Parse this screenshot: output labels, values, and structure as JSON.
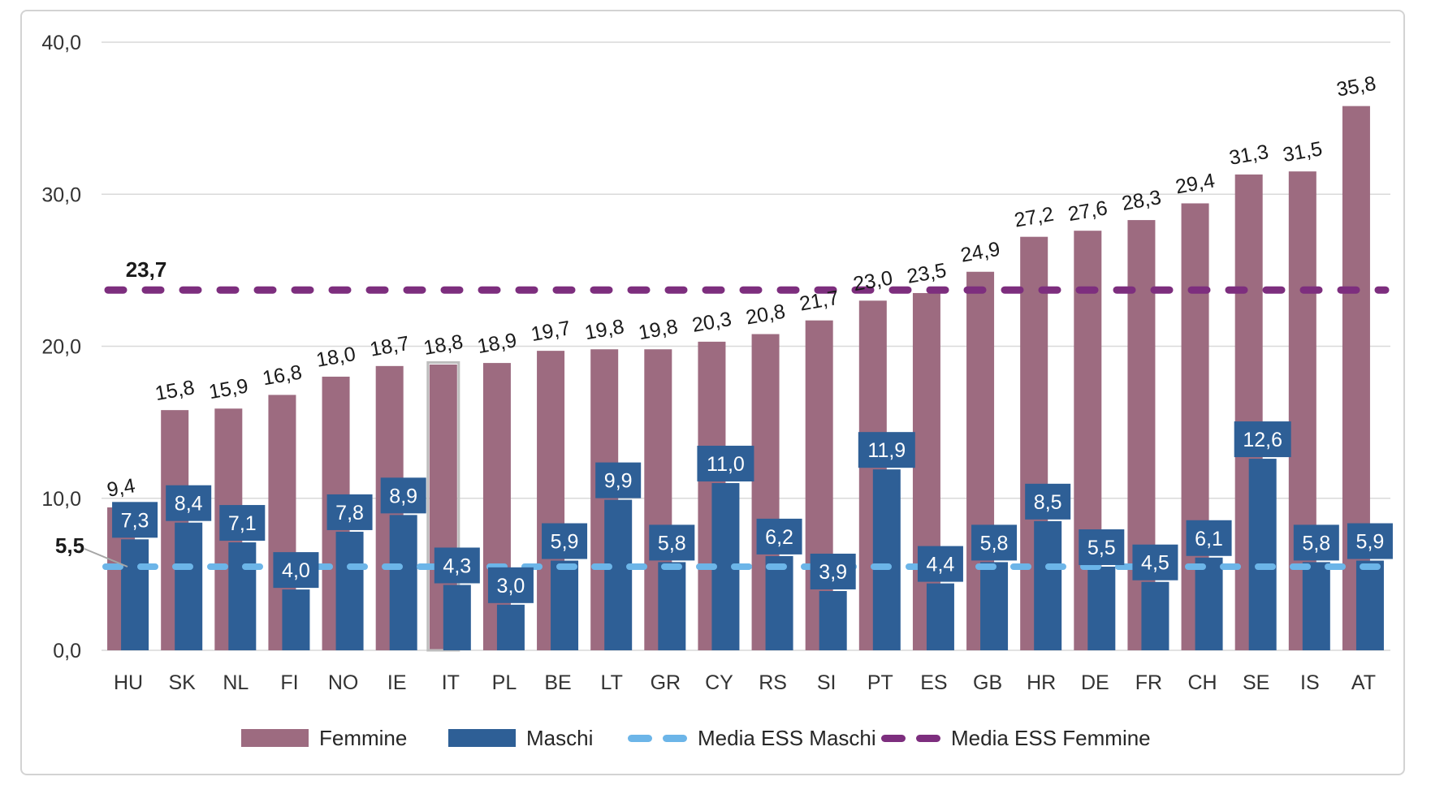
{
  "legend": {
    "items": [
      {
        "label": "Femmine"
      },
      {
        "label": "Maschi"
      },
      {
        "label": "Media ESS Maschi"
      },
      {
        "label": "Media ESS Femmine"
      }
    ]
  },
  "chart_data": {
    "type": "bar",
    "title": "",
    "xlabel": "",
    "ylabel": "",
    "ylim": [
      0,
      40
    ],
    "ytick_labels": [
      "0,0",
      "10,0",
      "20,0",
      "30,0",
      "40,0"
    ],
    "grid": true,
    "legend_position": "bottom",
    "decimal_separator": ",",
    "categories": [
      "HU",
      "SK",
      "NL",
      "FI",
      "NO",
      "IE",
      "IT",
      "PL",
      "BE",
      "LT",
      "GR",
      "CY",
      "RS",
      "SI",
      "PT",
      "ES",
      "GB",
      "HR",
      "DE",
      "FR",
      "CH",
      "SE",
      "IS",
      "AT"
    ],
    "series": [
      {
        "name": "Femmine",
        "color": "#9d6b80",
        "values": [
          9.4,
          15.8,
          15.9,
          16.8,
          18.0,
          18.7,
          18.8,
          18.9,
          19.7,
          19.8,
          19.8,
          20.3,
          20.8,
          21.7,
          23.0,
          23.5,
          24.9,
          27.2,
          27.6,
          28.3,
          29.4,
          31.3,
          31.5,
          35.8
        ],
        "labels": [
          "9,4",
          "15,8",
          "15,9",
          "16,8",
          "18,0",
          "18,7",
          "18,8",
          "18,9",
          "19,7",
          "19,8",
          "19,8",
          "20,3",
          "20,8",
          "21,7",
          "23,0",
          "23,5",
          "24,9",
          "27,2",
          "27,6",
          "28,3",
          "29,4",
          "31,3",
          "31,5",
          "35,8"
        ]
      },
      {
        "name": "Maschi",
        "color": "#2e5f96",
        "values": [
          7.3,
          8.4,
          7.1,
          4.0,
          7.8,
          8.9,
          4.3,
          3.0,
          5.9,
          9.9,
          5.8,
          11.0,
          6.2,
          3.9,
          11.9,
          4.4,
          5.8,
          8.5,
          5.5,
          4.5,
          6.1,
          12.6,
          5.8,
          5.9
        ],
        "labels": [
          "7,3",
          "8,4",
          "7,1",
          "4,0",
          "7,8",
          "8,9",
          "4,3",
          "3,0",
          "5,9",
          "9,9",
          "5,8",
          "11,0",
          "6,2",
          "3,9",
          "11,9",
          "4,4",
          "5,8",
          "8,5",
          "5,5",
          "4,5",
          "6,1",
          "12,6",
          "5,8",
          "5,9"
        ]
      }
    ],
    "reference_lines": [
      {
        "name": "Media ESS Maschi",
        "value": 5.5,
        "label": "5,5",
        "color": "#6cb5e8"
      },
      {
        "name": "Media ESS Femmine",
        "value": 23.7,
        "label": "23,7",
        "color": "#7d2e7e"
      }
    ],
    "highlighted_category": "IT",
    "highlight_color": "#bdbdbd",
    "gridline_color": "#d9d9d9",
    "axis_text_color": "#333333",
    "data_label_text_color": "#1a1a1a",
    "leader_line_color": "#a6a6a6"
  }
}
